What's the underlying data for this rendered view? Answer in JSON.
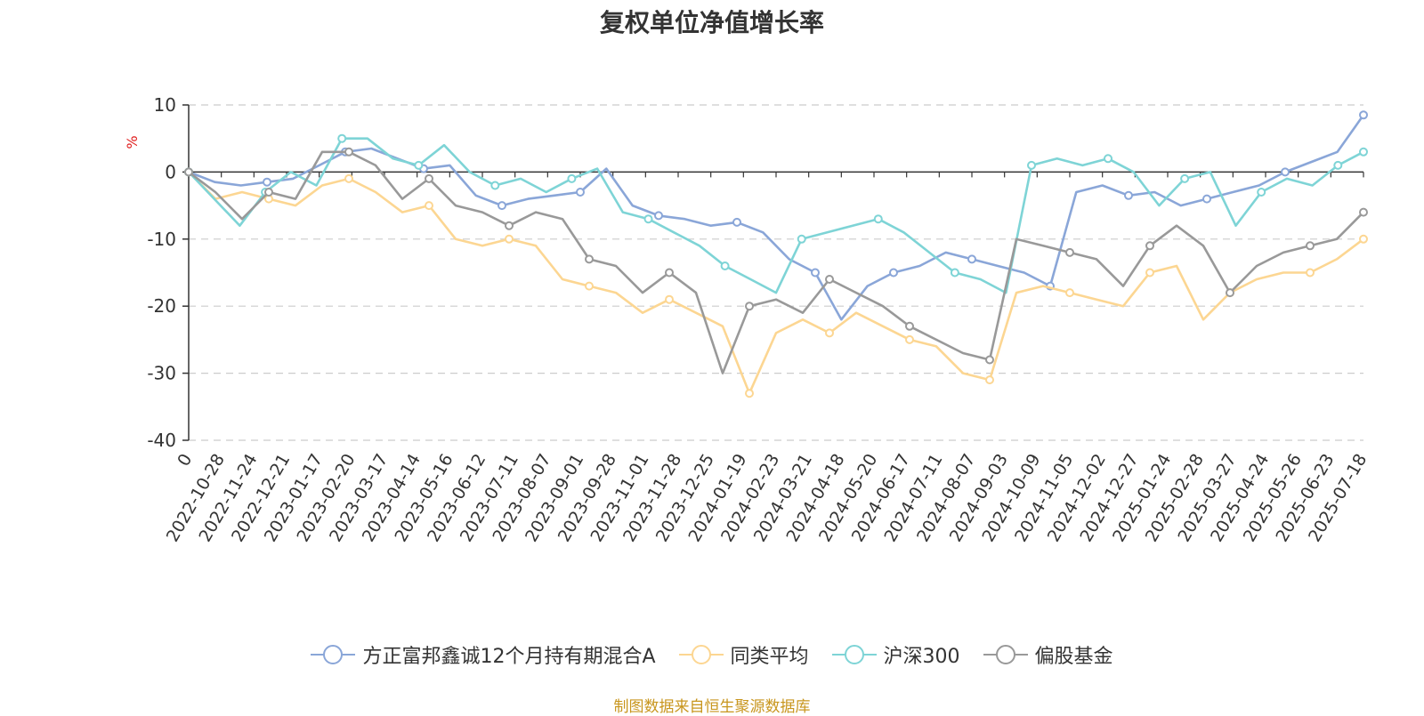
{
  "chart_data": {
    "type": "line",
    "title": "复权单位净值增长率",
    "ylabel": "%",
    "ylim": [
      -40,
      10
    ],
    "yticks": [
      10,
      0,
      -10,
      -20,
      -30,
      -40
    ],
    "grid": true,
    "legend_position": "bottom-center",
    "x_tick_labels": [
      "0",
      "2022-10-28",
      "2022-11-24",
      "2022-12-21",
      "2023-01-17",
      "2023-02-20",
      "2023-03-17",
      "2023-04-14",
      "2023-05-16",
      "2023-06-12",
      "2023-07-11",
      "2023-08-07",
      "2023-09-01",
      "2023-09-28",
      "2023-11-01",
      "2023-11-28",
      "2023-12-25",
      "2024-01-19",
      "2024-02-23",
      "2024-03-21",
      "2024-04-18",
      "2024-05-20",
      "2024-06-17",
      "2024-07-11",
      "2024-08-07",
      "2024-09-03",
      "2024-10-09",
      "2024-11-05",
      "2024-12-02",
      "2024-12-27",
      "2025-01-24",
      "2025-02-28",
      "2025-03-27",
      "2025-04-24",
      "2025-05-26",
      "2025-06-23",
      "2025-07-18"
    ],
    "series": [
      {
        "name": "方正富邦鑫诚12个月持有期混合A",
        "color": "#8aa6d8",
        "values": [
          0,
          -1.5,
          -2,
          -1.5,
          -1,
          1,
          3,
          3.5,
          2,
          0.5,
          1,
          -3.5,
          -5,
          -4,
          -3.5,
          -3,
          0.5,
          -5,
          -6.5,
          -7,
          -8,
          -7.5,
          -9,
          -13,
          -15,
          -22,
          -17,
          -15,
          -14,
          -12,
          -13,
          -14,
          -15,
          -17,
          -3,
          -2,
          -3.5,
          -3,
          -5,
          -4,
          -3,
          -2,
          0,
          1.5,
          3,
          8.5
        ]
      },
      {
        "name": "同类平均",
        "color": "#fcd692",
        "values": [
          0,
          -4,
          -3,
          -4,
          -5,
          -2,
          -1,
          -3,
          -6,
          -5,
          -10,
          -11,
          -10,
          -11,
          -16,
          -17,
          -18,
          -21,
          -19,
          -21,
          -23,
          -33,
          -24,
          -22,
          -24,
          -21,
          -23,
          -25,
          -26,
          -30,
          -31,
          -18,
          -17,
          -18,
          -19,
          -20,
          -15,
          -14,
          -22,
          -18,
          -16,
          -15,
          -15,
          -13,
          -10
        ]
      },
      {
        "name": "沪深300",
        "color": "#7ed4d6",
        "values": [
          0,
          -4,
          -8,
          -3,
          0,
          -2,
          5,
          5,
          2,
          1,
          4,
          0,
          -2,
          -1,
          -3,
          -1,
          0.5,
          -6,
          -7,
          -9,
          -11,
          -14,
          -16,
          -18,
          -10,
          -9,
          -8,
          -7,
          -9,
          -12,
          -15,
          -16,
          -18,
          1,
          2,
          1,
          2,
          0,
          -5,
          -1,
          0,
          -8,
          -3,
          -1,
          -2,
          1,
          3
        ]
      },
      {
        "name": "偏股基金",
        "color": "#999999",
        "values": [
          0,
          -3,
          -7,
          -3,
          -4,
          3,
          3,
          1,
          -4,
          -1,
          -5,
          -6,
          -8,
          -6,
          -7,
          -13,
          -14,
          -18,
          -15,
          -18,
          -30,
          -20,
          -19,
          -21,
          -16,
          -18,
          -20,
          -23,
          -25,
          -27,
          -28,
          -10,
          -11,
          -12,
          -13,
          -17,
          -11,
          -8,
          -11,
          -18,
          -14,
          -12,
          -11,
          -10,
          -6
        ]
      }
    ]
  },
  "source_text": "制图数据来自恒生聚源数据库"
}
